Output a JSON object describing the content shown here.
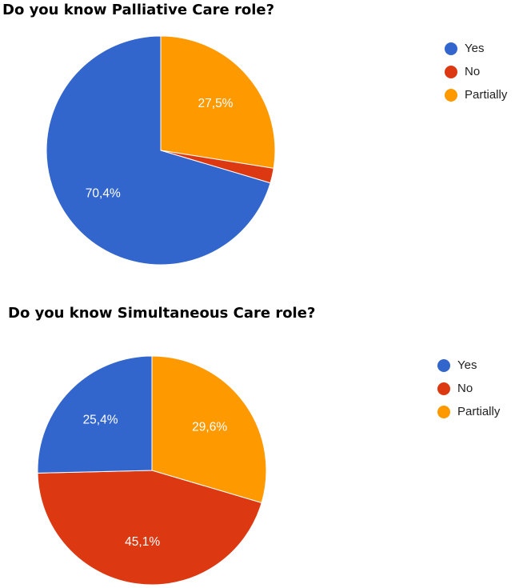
{
  "chart_data": [
    {
      "type": "pie",
      "title": "Do you know Palliative Care role?",
      "categories": [
        "Yes",
        "No",
        "Partially"
      ],
      "values": [
        70.4,
        2.1,
        27.5
      ],
      "labels": [
        "70,4%",
        "",
        "27,5%"
      ],
      "colors": [
        "#3366cc",
        "#dc3912",
        "#ff9900"
      ],
      "legend_position": "right"
    },
    {
      "type": "pie",
      "title": "Do you know Simultaneous Care role?",
      "categories": [
        "Yes",
        "No",
        "Partially"
      ],
      "values": [
        25.4,
        45.1,
        29.6
      ],
      "labels": [
        "25,4%",
        "45,1%",
        "29,6%"
      ],
      "colors": [
        "#3366cc",
        "#dc3912",
        "#ff9900"
      ],
      "legend_position": "right"
    }
  ]
}
